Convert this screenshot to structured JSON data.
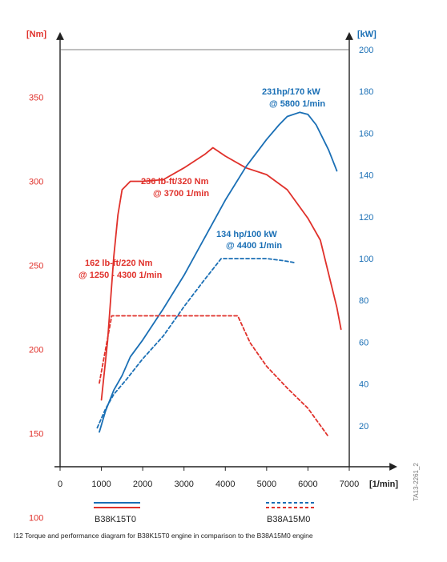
{
  "chart_data": {
    "type": "line",
    "x_unit": "[1/min]",
    "y_left_unit": "[Nm]",
    "y_right_unit": "[kW]",
    "xlim": [
      0,
      7000
    ],
    "x_ticks": [
      0,
      1000,
      2000,
      3000,
      4000,
      5000,
      6000,
      7000
    ],
    "y_left_ticks": [
      100,
      150,
      200,
      250,
      300,
      350
    ],
    "y_right_ticks": [
      20,
      40,
      60,
      80,
      100,
      120,
      140,
      160,
      180,
      200
    ],
    "colors": {
      "torque": "#e0312b",
      "power": "#1a6fb5",
      "axis": "#222222"
    },
    "series": [
      {
        "engine": "B38K15T0",
        "quantity": "torque",
        "axis": "left",
        "style": "solid",
        "points": [
          [
            1000,
            170
          ],
          [
            1150,
            205
          ],
          [
            1300,
            255
          ],
          [
            1400,
            280
          ],
          [
            1500,
            295
          ],
          [
            1700,
            300
          ],
          [
            2000,
            300
          ],
          [
            2500,
            301
          ],
          [
            3000,
            308
          ],
          [
            3500,
            316
          ],
          [
            3700,
            320
          ],
          [
            4000,
            315
          ],
          [
            4500,
            308
          ],
          [
            5000,
            304
          ],
          [
            5500,
            295
          ],
          [
            6000,
            278
          ],
          [
            6300,
            265
          ],
          [
            6500,
            245
          ],
          [
            6700,
            225
          ],
          [
            6800,
            212
          ]
        ]
      },
      {
        "engine": "B38K15T0",
        "quantity": "power",
        "axis": "right",
        "style": "solid",
        "points": [
          [
            950,
            17
          ],
          [
            1100,
            27
          ],
          [
            1300,
            37
          ],
          [
            1500,
            44
          ],
          [
            1700,
            53
          ],
          [
            2000,
            61
          ],
          [
            2500,
            76
          ],
          [
            3000,
            92
          ],
          [
            3500,
            110
          ],
          [
            4000,
            128
          ],
          [
            4500,
            144
          ],
          [
            5000,
            157
          ],
          [
            5300,
            164
          ],
          [
            5500,
            168
          ],
          [
            5800,
            170
          ],
          [
            6000,
            169
          ],
          [
            6200,
            164
          ],
          [
            6500,
            152
          ],
          [
            6700,
            142
          ]
        ]
      },
      {
        "engine": "B38A15M0",
        "quantity": "torque",
        "axis": "left",
        "style": "dashed",
        "points": [
          [
            950,
            180
          ],
          [
            1100,
            200
          ],
          [
            1250,
            220
          ],
          [
            2000,
            220
          ],
          [
            3000,
            220
          ],
          [
            3500,
            220
          ],
          [
            4300,
            220
          ],
          [
            4600,
            204
          ],
          [
            5000,
            190
          ],
          [
            5500,
            177
          ],
          [
            6000,
            165
          ],
          [
            6500,
            148
          ]
        ]
      },
      {
        "engine": "B38A15M0",
        "quantity": "power",
        "axis": "right",
        "style": "dashed",
        "points": [
          [
            900,
            19
          ],
          [
            1100,
            28
          ],
          [
            1300,
            35
          ],
          [
            1600,
            42
          ],
          [
            2000,
            52
          ],
          [
            2500,
            63
          ],
          [
            3000,
            77
          ],
          [
            3500,
            90
          ],
          [
            3900,
            100
          ],
          [
            4400,
            100
          ],
          [
            5000,
            100
          ],
          [
            5400,
            99
          ],
          [
            5700,
            98
          ]
        ]
      }
    ],
    "annotations": [
      {
        "text": "231hp/170 kW",
        "text2": "@ 5800 1/min",
        "color": "blue"
      },
      {
        "text": "236 lb-ft/320 Nm",
        "text2": "@ 3700 1/min",
        "color": "red"
      },
      {
        "text": "134 hp/100 kW",
        "text2": "@ 4400 1/min",
        "color": "blue"
      },
      {
        "text": "162 lb-ft/220 Nm",
        "text2": "@ 1250 - 4300 1/min",
        "color": "red"
      }
    ],
    "legend": [
      {
        "label": "B38K15T0",
        "style": "solid"
      },
      {
        "label": "B38A15M0",
        "style": "dashed"
      }
    ],
    "legend_placement": "bottom",
    "grid": false
  },
  "caption": "I12 Torque and performance diagram for B38K15T0 engine in comparison to the B38A15M0 engine",
  "figure_id": "TA13-2261_2"
}
